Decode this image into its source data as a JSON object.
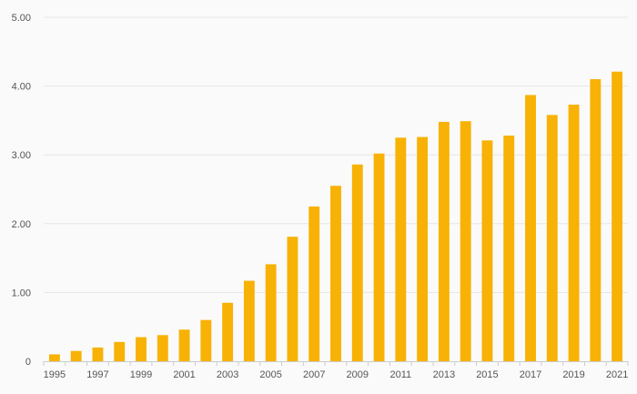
{
  "chart_data": {
    "type": "bar",
    "title": "",
    "xlabel": "",
    "ylabel": "",
    "ylim": [
      0,
      5
    ],
    "grid": true,
    "legend": "none",
    "y_ticks": [
      {
        "value": 0,
        "label": "0"
      },
      {
        "value": 1,
        "label": "1.00"
      },
      {
        "value": 2,
        "label": "2.00"
      },
      {
        "value": 3,
        "label": "3.00"
      },
      {
        "value": 4,
        "label": "4.00"
      },
      {
        "value": 5,
        "label": "5.00"
      }
    ],
    "categories": [
      "1995",
      "1996",
      "1997",
      "1998",
      "1999",
      "2000",
      "2001",
      "2002",
      "2003",
      "2004",
      "2005",
      "2006",
      "2007",
      "2008",
      "2009",
      "2010",
      "2011",
      "2012",
      "2013",
      "2014",
      "2015",
      "2016",
      "2017",
      "2018",
      "2019",
      "2020",
      "2021"
    ],
    "x_tick_labels": [
      "1995",
      "1997",
      "1999",
      "2001",
      "2003",
      "2005",
      "2007",
      "2009",
      "2011",
      "2013",
      "2015",
      "2017",
      "2019",
      "2021"
    ],
    "values": [
      0.1,
      0.15,
      0.2,
      0.28,
      0.35,
      0.38,
      0.46,
      0.6,
      0.85,
      1.17,
      1.41,
      1.81,
      2.25,
      2.55,
      2.86,
      3.02,
      3.25,
      3.26,
      3.48,
      3.49,
      3.21,
      3.28,
      3.87,
      3.58,
      3.73,
      4.1,
      4.21
    ],
    "colors": {
      "bar": "#f8b205",
      "grid": "#e6e6e6",
      "axis": "#cccccc",
      "tick_text": "#555555",
      "background": "#fafafa"
    }
  }
}
